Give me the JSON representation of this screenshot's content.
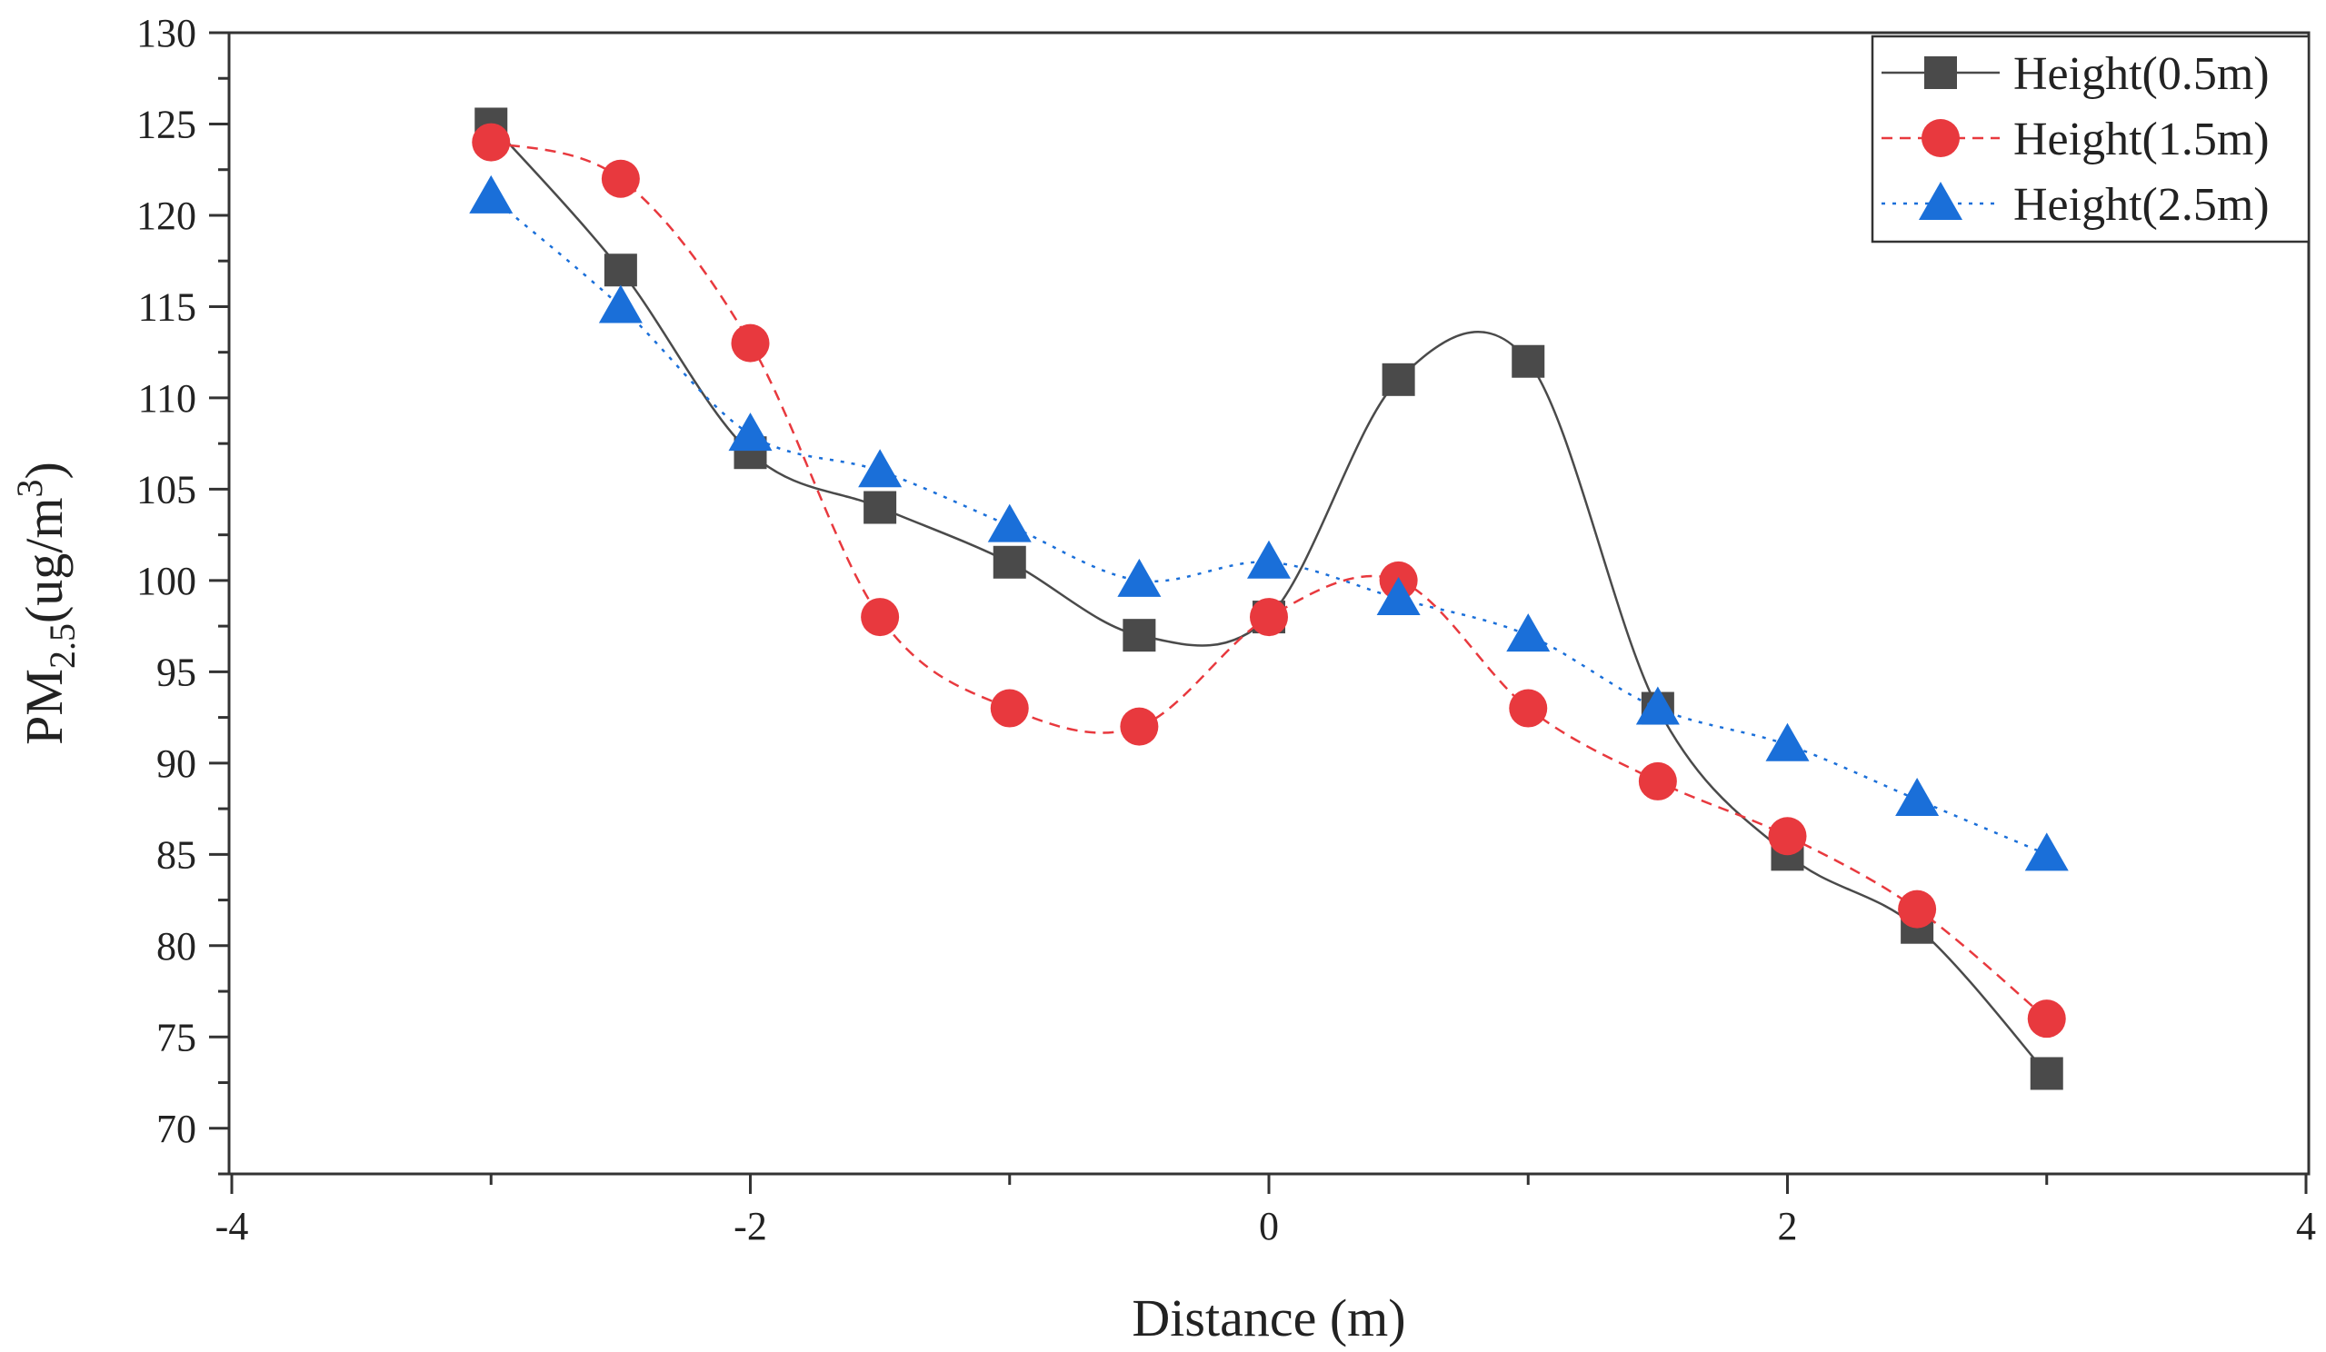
{
  "chart_data": {
    "type": "line",
    "title": "",
    "xlabel": "Distance (m)",
    "ylabel": {
      "base": "PM",
      "subscript": "2.5",
      "unit_open": "(ug/m",
      "superscript": "3",
      "unit_close": ")"
    },
    "xlim": [
      -4,
      4
    ],
    "ylim": [
      67.5,
      130
    ],
    "xticks": [
      -4,
      -2,
      0,
      2,
      4
    ],
    "yticks": [
      70,
      75,
      80,
      85,
      90,
      95,
      100,
      105,
      110,
      115,
      120,
      125,
      130
    ],
    "grid": false,
    "legend_position": "top-right",
    "x": [
      -3,
      -2.5,
      -2,
      -1.5,
      -1,
      -0.5,
      0,
      0.5,
      1,
      1.5,
      2,
      2.5,
      3
    ],
    "series": [
      {
        "name": "Height(0.5m)",
        "color": "#4a4a4a",
        "marker": "square",
        "line": "solid",
        "values": [
          125,
          117,
          107,
          104,
          101,
          97,
          98,
          111,
          112,
          93,
          85,
          81,
          73
        ]
      },
      {
        "name": "Height(1.5m)",
        "color": "#e8393e",
        "marker": "circle",
        "line": "dashed",
        "values": [
          124,
          122,
          113,
          98,
          93,
          92,
          98,
          100,
          93,
          89,
          86,
          82,
          76
        ]
      },
      {
        "name": "Height(2.5m)",
        "color": "#1a6fd9",
        "marker": "triangle",
        "line": "dotted",
        "values": [
          121,
          115,
          108,
          106,
          103,
          100,
          101,
          99,
          97,
          93,
          91,
          88,
          85
        ]
      }
    ]
  }
}
